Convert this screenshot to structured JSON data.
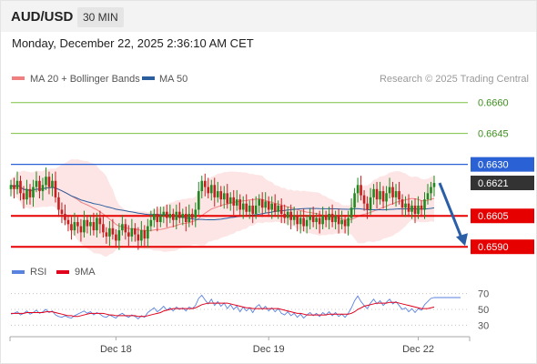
{
  "header": {
    "symbol": "AUD/USD",
    "interval": "30 MIN"
  },
  "datetime": "Monday, December 22, 2025 2:36:10 AM CET",
  "legend": {
    "ma_bollinger": "MA 20 + Bollinger Bands",
    "ma50": "MA 50",
    "credit": "Research © 2025 Trading Central",
    "rsi": "RSI",
    "rsi_ma": "9MA"
  },
  "colors": {
    "up": "#1f8a1f",
    "down": "#c61f1f",
    "ma20": "#f08080",
    "band": "#fcdcdc",
    "ma50": "#2c5e9e",
    "resistance": "#2a62d6",
    "support": "#e60000",
    "target": "#7cc142",
    "last": "#333333",
    "rsi": "#5a82e0",
    "rsi_ma": "#e0001b",
    "arrow": "#2a5fa8"
  },
  "chart_data": [
    {
      "type": "candlestick",
      "y_range": [
        0.6587,
        0.66665
      ],
      "levels": [
        {
          "value": 0.666,
          "label": "0.6660",
          "kind": "target"
        },
        {
          "value": 0.6645,
          "label": "0.6645",
          "kind": "target"
        },
        {
          "value": 0.663,
          "label": "0.6630",
          "kind": "resistance"
        },
        {
          "value": 0.6621,
          "label": "0.6621",
          "kind": "last"
        },
        {
          "value": 0.6605,
          "label": "0.6605",
          "kind": "support"
        },
        {
          "value": 0.659,
          "label": "0.6590",
          "kind": "support"
        }
      ],
      "x_labels": [
        {
          "index": 33,
          "label": "Dec 18"
        },
        {
          "index": 81,
          "label": "Dec 19"
        },
        {
          "index": 128,
          "label": "Dec 22"
        }
      ],
      "closes": [
        0.662,
        0.6618,
        0.6622,
        0.6616,
        0.6613,
        0.6618,
        0.6614,
        0.6619,
        0.6622,
        0.6617,
        0.662,
        0.6624,
        0.6619,
        0.6622,
        0.6614,
        0.6608,
        0.6606,
        0.6603,
        0.6601,
        0.6598,
        0.6602,
        0.66,
        0.6597,
        0.6603,
        0.66,
        0.6602,
        0.6598,
        0.6604,
        0.6601,
        0.6597,
        0.6595,
        0.6599,
        0.6596,
        0.6593,
        0.6598,
        0.6601,
        0.6597,
        0.6595,
        0.6599,
        0.6596,
        0.6593,
        0.6598,
        0.6594,
        0.66,
        0.6603,
        0.6606,
        0.6602,
        0.6605,
        0.6607,
        0.6604,
        0.6606,
        0.6603,
        0.6607,
        0.6604,
        0.6606,
        0.6602,
        0.6606,
        0.6604,
        0.6608,
        0.6617,
        0.6622,
        0.6619,
        0.6616,
        0.662,
        0.6614,
        0.6617,
        0.6613,
        0.6616,
        0.6611,
        0.6614,
        0.661,
        0.6613,
        0.6608,
        0.6611,
        0.6607,
        0.661,
        0.6606,
        0.661,
        0.6613,
        0.6609,
        0.6612,
        0.6608,
        0.6611,
        0.6607,
        0.661,
        0.6606,
        0.6604,
        0.6607,
        0.6603,
        0.6605,
        0.6601,
        0.6604,
        0.66,
        0.6603,
        0.6605,
        0.6602,
        0.6604,
        0.6601,
        0.6605,
        0.6603,
        0.6606,
        0.6602,
        0.6605,
        0.6601,
        0.6603,
        0.66,
        0.6604,
        0.6609,
        0.6616,
        0.662,
        0.6615,
        0.6611,
        0.6608,
        0.6614,
        0.6618,
        0.6613,
        0.6617,
        0.6612,
        0.6616,
        0.6619,
        0.6614,
        0.6617,
        0.6613,
        0.6609,
        0.6611,
        0.6607,
        0.661,
        0.6606,
        0.661,
        0.6608,
        0.6613,
        0.6616,
        0.6619,
        0.6621
      ],
      "forecast": {
        "from": 0.6621,
        "to": 0.659
      }
    },
    {
      "type": "line",
      "title": "RSI",
      "y_range": [
        20,
        80
      ],
      "ticks": [
        70,
        50,
        30
      ],
      "series": [
        {
          "name": "RSI",
          "values": [
            44,
            45,
            47,
            43,
            45,
            48,
            44,
            46,
            49,
            45,
            47,
            50,
            46,
            48,
            43,
            41,
            40,
            42,
            40,
            39,
            42,
            44,
            46,
            48,
            45,
            47,
            43,
            46,
            44,
            41,
            40,
            43,
            41,
            39,
            43,
            45,
            42,
            40,
            43,
            41,
            38,
            42,
            40,
            46,
            49,
            52,
            47,
            50,
            54,
            49,
            52,
            48,
            53,
            50,
            52,
            48,
            53,
            51,
            55,
            64,
            68,
            62,
            57,
            63,
            55,
            60,
            54,
            58,
            51,
            56,
            50,
            54,
            47,
            53,
            48,
            52,
            46,
            53,
            56,
            50,
            54,
            48,
            52,
            47,
            51,
            45,
            43,
            47,
            42,
            45,
            40,
            44,
            39,
            43,
            46,
            42,
            45,
            41,
            46,
            43,
            47,
            42,
            46,
            41,
            44,
            40,
            45,
            52,
            61,
            67,
            60,
            55,
            51,
            58,
            63,
            57,
            61,
            55,
            59,
            63,
            57,
            60,
            55,
            50,
            52,
            47,
            51,
            46,
            51,
            49,
            56,
            60,
            64,
            65
          ]
        },
        {
          "name": "9MA",
          "values": [
            45,
            45,
            45,
            45,
            45,
            46,
            46,
            46,
            46,
            46,
            46,
            47,
            47,
            47,
            46,
            45,
            44,
            43,
            42,
            42,
            41,
            41,
            42,
            43,
            44,
            45,
            45,
            45,
            45,
            45,
            44,
            43,
            43,
            42,
            42,
            42,
            42,
            42,
            42,
            42,
            41,
            41,
            41,
            42,
            43,
            44,
            45,
            46,
            48,
            49,
            50,
            51,
            51,
            51,
            51,
            51,
            51,
            51,
            52,
            54,
            56,
            57,
            58,
            58,
            58,
            58,
            58,
            58,
            58,
            57,
            56,
            55,
            54,
            53,
            52,
            52,
            51,
            51,
            51,
            51,
            51,
            51,
            51,
            51,
            51,
            50,
            49,
            48,
            47,
            46,
            45,
            45,
            44,
            43,
            43,
            43,
            43,
            43,
            43,
            43,
            44,
            44,
            44,
            44,
            44,
            44,
            44,
            45,
            47,
            50,
            52,
            54,
            55,
            56,
            57,
            58,
            58,
            58,
            58,
            59,
            59,
            59,
            58,
            57,
            56,
            55,
            54,
            53,
            52,
            51,
            51,
            51,
            52,
            53
          ]
        }
      ]
    }
  ]
}
